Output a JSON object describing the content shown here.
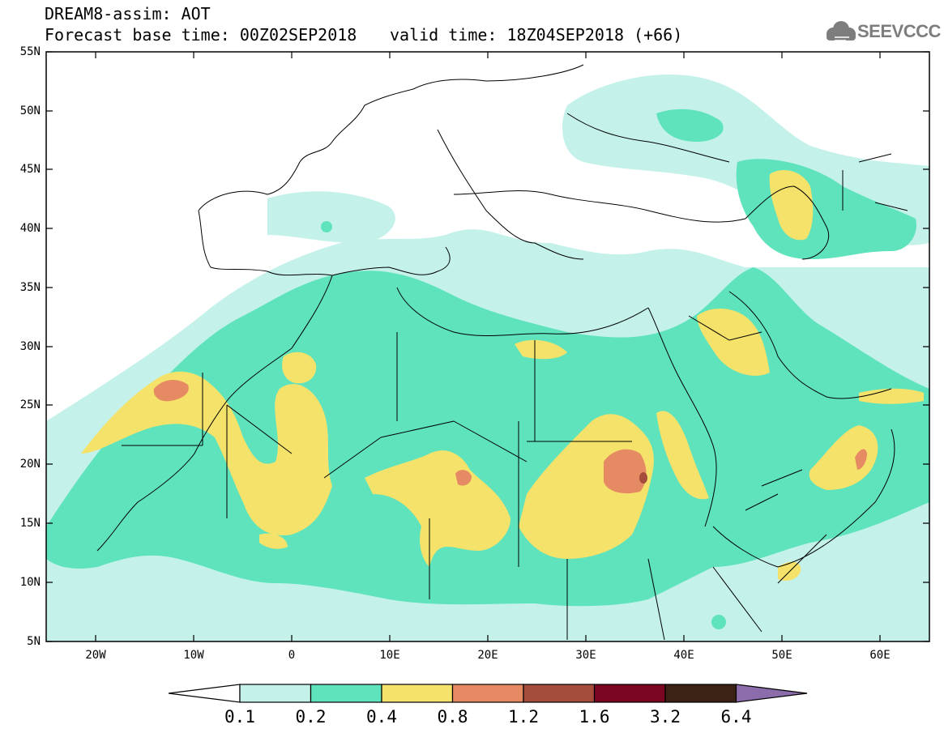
{
  "title": {
    "line1": "DREAM8-assim: AOT",
    "line2": "Forecast base time: 00Z02SEP2018",
    "valid_time": "valid time: 18Z04SEP2018 (+66)"
  },
  "logo": {
    "text": "SEEVCCC",
    "icon": "cloud-icon"
  },
  "axes": {
    "lat_labels": [
      "55N",
      "50N",
      "45N",
      "40N",
      "35N",
      "30N",
      "25N",
      "20N",
      "15N",
      "10N",
      "5N"
    ],
    "lon_labels": [
      "20W",
      "10W",
      "0",
      "10E",
      "20E",
      "30E",
      "40E",
      "50E",
      "60E"
    ],
    "lon_range": [
      -25,
      65
    ],
    "lat_range": [
      5,
      55
    ]
  },
  "legend": {
    "labels": [
      "0.1",
      "0.2",
      "0.4",
      "0.8",
      "1.2",
      "1.6",
      "3.2",
      "6.4"
    ],
    "colors": [
      "#ffffff",
      "#c4f2ea",
      "#5ee3bd",
      "#f5e26a",
      "#e58a62",
      "#a64c3c",
      "#7b0622",
      "#3b2214",
      "#8c6cab"
    ]
  },
  "colors": {
    "level1": "#c4f2ea",
    "level2": "#5ee3bd",
    "level3": "#f5e26a",
    "level4": "#e58a62",
    "level5": "#a64c3c",
    "border": "#000000"
  }
}
